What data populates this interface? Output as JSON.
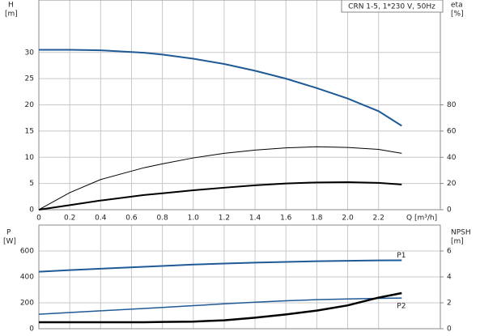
{
  "chart_data": [
    {
      "type": "line",
      "title": "CRN 1-5, 1*230 V, 50Hz",
      "y_label": "H",
      "y_unit": "[m]",
      "y2_label": "eta",
      "y2_unit": "[%]",
      "x_label": "Q [m³/h]",
      "x": [
        0,
        0.2,
        0.4,
        0.68,
        0.8,
        1.0,
        1.2,
        1.4,
        1.6,
        1.8,
        2.0,
        2.2,
        2.35
      ],
      "xlim": [
        0,
        2.6
      ],
      "xticks": [
        0,
        0.2,
        0.4,
        0.6,
        0.8,
        {
          "value": 1,
          "label": "1.0"
        },
        1.2,
        1.4,
        1.6,
        1.8,
        {
          "value": 2,
          "label": "2.0"
        },
        2.2
      ],
      "ylim": [
        0,
        40
      ],
      "yticks": [
        0,
        5,
        10,
        15,
        20,
        25,
        30
      ],
      "y2lim": [
        0,
        160
      ],
      "y2ticks": [
        0,
        20,
        40,
        60,
        80
      ],
      "grid": true,
      "series": [
        {
          "color": "#1f5a96",
          "width": 2,
          "values": [
            30.5,
            30.5,
            30.4,
            29.95,
            29.6,
            28.8,
            27.8,
            26.5,
            25,
            23.2,
            21.2,
            18.8,
            16
          ]
        },
        {
          "color": "#000000",
          "width": 1,
          "axis": "y2",
          "values": [
            0,
            13,
            23,
            32,
            35,
            39.5,
            43,
            45.5,
            47.2,
            48,
            47.5,
            46,
            43
          ]
        },
        {
          "color": "#000000",
          "width": 2,
          "axis": "y2",
          "values": [
            0,
            3.5,
            7,
            11.2,
            12.5,
            14.8,
            16.8,
            18.6,
            20,
            20.8,
            21,
            20.5,
            19.2
          ]
        }
      ]
    },
    {
      "type": "line",
      "y_label": "P",
      "y_unit": "[W]",
      "y2_label": "NPSH",
      "y2_unit": "[m]",
      "x": [
        0,
        0.2,
        0.4,
        0.68,
        0.8,
        1.0,
        1.2,
        1.4,
        1.6,
        1.8,
        2.0,
        2.2,
        2.35
      ],
      "xlim": [
        0,
        2.6
      ],
      "xgrid": [
        0,
        0.2,
        0.4,
        0.6,
        0.8,
        1,
        1.2,
        1.4,
        1.6,
        1.8,
        2,
        2.2
      ],
      "ylim": [
        0,
        800
      ],
      "yticks": [
        0,
        200,
        400,
        600
      ],
      "y2lim": [
        0,
        8
      ],
      "y2ticks": [
        0,
        2,
        4,
        6
      ],
      "grid": true,
      "series": [
        {
          "name": "P1",
          "color": "#1f5a96",
          "width": 2,
          "values": [
            440,
            452,
            463,
            478,
            484,
            495,
            503,
            510,
            516,
            521,
            524,
            527,
            528
          ]
        },
        {
          "name": "P2",
          "color": "#1f5a96",
          "width": 1.5,
          "values": [
            112,
            125,
            138,
            156,
            164,
            178,
            192,
            205,
            216,
            224,
            230,
            234,
            237
          ]
        },
        {
          "color": "#000000",
          "width": 2.5,
          "axis": "y2",
          "values": [
            0.5,
            0.5,
            0.5,
            0.5,
            0.52,
            0.55,
            0.65,
            0.85,
            1.1,
            1.4,
            1.8,
            2.4,
            2.75
          ]
        }
      ]
    }
  ]
}
